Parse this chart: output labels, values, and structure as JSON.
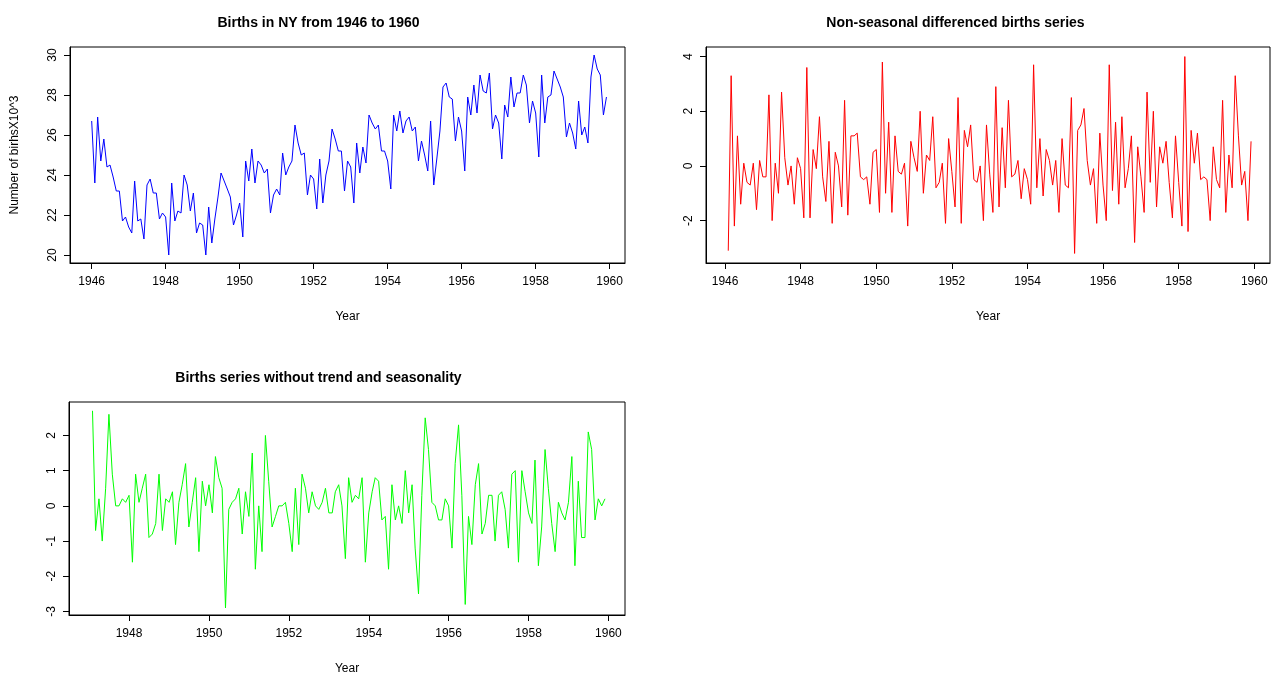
{
  "chart_data": [
    {
      "type": "line",
      "title": "Births in NY from 1946 to 1960",
      "xlabel": "Year",
      "ylabel": "Number of birhsX10^3",
      "color": "#0000ff",
      "marker": "none",
      "xlim": [
        "1945-06",
        "1960-06"
      ],
      "ylim": [
        19.6,
        30.4
      ],
      "xticks": [
        "1946",
        "1948",
        "1950",
        "1952",
        "1954",
        "1956",
        "1958",
        "1960"
      ],
      "yticks": [
        20,
        22,
        24,
        26,
        28,
        30
      ],
      "x": [
        "1946-01",
        "1946-02",
        "1946-03",
        "1946-04",
        "1946-05",
        "1946-06",
        "1946-07",
        "1946-08",
        "1946-09",
        "1946-10",
        "1946-11",
        "1946-12",
        "1947-01",
        "1947-02",
        "1947-03",
        "1947-04",
        "1947-05",
        "1947-06",
        "1947-07",
        "1947-08",
        "1947-09",
        "1947-10",
        "1947-11",
        "1947-12",
        "1948-01",
        "1948-02",
        "1948-03",
        "1948-04",
        "1948-05",
        "1948-06",
        "1948-07",
        "1948-08",
        "1948-09",
        "1948-10",
        "1948-11",
        "1948-12",
        "1949-01",
        "1949-02",
        "1949-03",
        "1949-04",
        "1949-05",
        "1949-06",
        "1949-07",
        "1949-08",
        "1949-09",
        "1949-10",
        "1949-11",
        "1949-12",
        "1950-01",
        "1950-02",
        "1950-03",
        "1950-04",
        "1950-05",
        "1950-06",
        "1950-07",
        "1950-08",
        "1950-09",
        "1950-10",
        "1950-11",
        "1950-12",
        "1951-01",
        "1951-02",
        "1951-03",
        "1951-04",
        "1951-05",
        "1951-06",
        "1951-07",
        "1951-08",
        "1951-09",
        "1951-10",
        "1951-11",
        "1951-12",
        "1952-01",
        "1952-02",
        "1952-03",
        "1952-04",
        "1952-05",
        "1952-06",
        "1952-07",
        "1952-08",
        "1952-09",
        "1952-10",
        "1952-11",
        "1952-12",
        "1953-01",
        "1953-02",
        "1953-03",
        "1953-04",
        "1953-05",
        "1953-06",
        "1953-07",
        "1953-08",
        "1953-09",
        "1953-10",
        "1953-11",
        "1953-12",
        "1954-01",
        "1954-02",
        "1954-03",
        "1954-04",
        "1954-05",
        "1954-06",
        "1954-07",
        "1954-08",
        "1954-09",
        "1954-10",
        "1954-11",
        "1954-12",
        "1955-01",
        "1955-02",
        "1955-03",
        "1955-04",
        "1955-05",
        "1955-06",
        "1955-07",
        "1955-08",
        "1955-09",
        "1955-10",
        "1955-11",
        "1955-12",
        "1956-01",
        "1956-02",
        "1956-03",
        "1956-04",
        "1956-05",
        "1956-06",
        "1956-07",
        "1956-08",
        "1956-09",
        "1956-10",
        "1956-11",
        "1956-12",
        "1957-01",
        "1957-02",
        "1957-03",
        "1957-04",
        "1957-05",
        "1957-06",
        "1957-07",
        "1957-08",
        "1957-09",
        "1957-10",
        "1957-11",
        "1957-12",
        "1958-01",
        "1958-02",
        "1958-03",
        "1958-04",
        "1958-05",
        "1958-06",
        "1958-07",
        "1958-08",
        "1958-09",
        "1958-10",
        "1958-11",
        "1958-12",
        "1959-01",
        "1959-02",
        "1959-03",
        "1959-04",
        "1959-05",
        "1959-06",
        "1959-07",
        "1959-08",
        "1959-09",
        "1959-10",
        "1959-11",
        "1959-12"
      ],
      "values": [
        26.7,
        23.6,
        26.9,
        24.7,
        25.8,
        24.4,
        24.5,
        23.9,
        23.2,
        23.2,
        21.7,
        21.9,
        21.4,
        21.1,
        23.7,
        21.7,
        21.8,
        20.8,
        23.5,
        23.8,
        23.1,
        23.1,
        21.8,
        22.1,
        21.9,
        20.0,
        23.6,
        21.7,
        22.2,
        22.1,
        24.0,
        23.5,
        22.2,
        23.1,
        21.1,
        21.6,
        21.5,
        20.0,
        22.4,
        20.6,
        21.8,
        22.9,
        24.1,
        23.7,
        23.3,
        22.9,
        21.5,
        22.0,
        22.6,
        20.9,
        24.7,
        23.7,
        25.3,
        23.6,
        24.7,
        24.5,
        24.1,
        24.3,
        22.1,
        23.0,
        23.3,
        23.0,
        25.1,
        24.0,
        24.4,
        24.7,
        26.5,
        25.6,
        25.0,
        25.1,
        23.0,
        24.0,
        23.8,
        22.3,
        24.8,
        22.6,
        24.0,
        24.7,
        26.3,
        25.8,
        25.2,
        25.2,
        23.2,
        24.7,
        24.4,
        22.6,
        25.6,
        24.1,
        25.4,
        24.6,
        27.0,
        26.6,
        26.3,
        26.5,
        25.2,
        25.2,
        24.7,
        23.3,
        27.0,
        26.2,
        27.2,
        26.1,
        26.7,
        26.9,
        26.2,
        26.4,
        24.7,
        25.7,
        25.0,
        24.2,
        26.7,
        23.5,
        24.8,
        26.2,
        28.4,
        28.6,
        27.9,
        27.8,
        25.7,
        26.9,
        26.2,
        24.2,
        27.9,
        27.0,
        28.5,
        27.1,
        29.0,
        28.2,
        28.1,
        29.1,
        26.3,
        27.0,
        26.6,
        24.8,
        27.5,
        26.9,
        28.9,
        27.4,
        28.1,
        28.1,
        29.0,
        28.5,
        26.6,
        27.7,
        27.1,
        24.9,
        29.0,
        26.6,
        27.9,
        28.0,
        29.2,
        28.8,
        28.4,
        27.9,
        25.9,
        26.6,
        26.1,
        25.3,
        27.7,
        26.0,
        26.4,
        25.6,
        28.9,
        30.0,
        29.3,
        29.0,
        27.0,
        27.9
      ]
    },
    {
      "type": "line",
      "title": "Non-seasonal differenced births series",
      "xlabel": "Year",
      "color": "#ff0000",
      "marker": "none",
      "xlim": [
        "1945-07",
        "1960-06"
      ],
      "ylim": [
        -3.55,
        4.35
      ],
      "xticks": [
        "1946",
        "1948",
        "1950",
        "1952",
        "1954",
        "1956",
        "1958",
        "1960"
      ],
      "yticks": [
        -2,
        0,
        2,
        4
      ],
      "x": [
        "1946-02",
        "1946-03",
        "1946-04",
        "1946-05",
        "1946-06",
        "1946-07",
        "1946-08",
        "1946-09",
        "1946-10",
        "1946-11",
        "1946-12",
        "1947-01",
        "1947-02",
        "1947-03",
        "1947-04",
        "1947-05",
        "1947-06",
        "1947-07",
        "1947-08",
        "1947-09",
        "1947-10",
        "1947-11",
        "1947-12",
        "1948-01",
        "1948-02",
        "1948-03",
        "1948-04",
        "1948-05",
        "1948-06",
        "1948-07",
        "1948-08",
        "1948-09",
        "1948-10",
        "1948-11",
        "1948-12",
        "1949-01",
        "1949-02",
        "1949-03",
        "1949-04",
        "1949-05",
        "1949-06",
        "1949-07",
        "1949-08",
        "1949-09",
        "1949-10",
        "1949-11",
        "1949-12",
        "1950-01",
        "1950-02",
        "1950-03",
        "1950-04",
        "1950-05",
        "1950-06",
        "1950-07",
        "1950-08",
        "1950-09",
        "1950-10",
        "1950-11",
        "1950-12",
        "1951-01",
        "1951-02",
        "1951-03",
        "1951-04",
        "1951-05",
        "1951-06",
        "1951-07",
        "1951-08",
        "1951-09",
        "1951-10",
        "1951-11",
        "1951-12",
        "1952-01",
        "1952-02",
        "1952-03",
        "1952-04",
        "1952-05",
        "1952-06",
        "1952-07",
        "1952-08",
        "1952-09",
        "1952-10",
        "1952-11",
        "1952-12",
        "1953-01",
        "1953-02",
        "1953-03",
        "1953-04",
        "1953-05",
        "1953-06",
        "1953-07",
        "1953-08",
        "1953-09",
        "1953-10",
        "1953-11",
        "1953-12",
        "1954-01",
        "1954-02",
        "1954-03",
        "1954-04",
        "1954-05",
        "1954-06",
        "1954-07",
        "1954-08",
        "1954-09",
        "1954-10",
        "1954-11",
        "1954-12",
        "1955-01",
        "1955-02",
        "1955-03",
        "1955-04",
        "1955-05",
        "1955-06",
        "1955-07",
        "1955-08",
        "1955-09",
        "1955-10",
        "1955-11",
        "1955-12",
        "1956-01",
        "1956-02",
        "1956-03",
        "1956-04",
        "1956-05",
        "1956-06",
        "1956-07",
        "1956-08",
        "1956-09",
        "1956-10",
        "1956-11",
        "1956-12",
        "1957-01",
        "1957-02",
        "1957-03",
        "1957-04",
        "1957-05",
        "1957-06",
        "1957-07",
        "1957-08",
        "1957-09",
        "1957-10",
        "1957-11",
        "1957-12",
        "1958-01",
        "1958-02",
        "1958-03",
        "1958-04",
        "1958-05",
        "1958-06",
        "1958-07",
        "1958-08",
        "1958-09",
        "1958-10",
        "1958-11",
        "1958-12",
        "1959-01",
        "1959-02",
        "1959-03",
        "1959-04",
        "1959-05",
        "1959-06",
        "1959-07",
        "1959-08",
        "1959-09",
        "1959-10",
        "1959-11",
        "1959-12"
      ],
      "values": [
        -3.1,
        3.3,
        -2.2,
        1.1,
        -1.4,
        0.1,
        -0.6,
        -0.7,
        0.1,
        -1.6,
        0.2,
        -0.4,
        -0.4,
        2.6,
        -2.0,
        0.1,
        -1.0,
        2.7,
        0.3,
        -0.7,
        0.0,
        -1.4,
        0.3,
        -0.1,
        -1.9,
        3.6,
        -1.9,
        0.6,
        -0.1,
        1.8,
        -0.4,
        -1.3,
        0.9,
        -2.1,
        0.5,
        0.0,
        -1.5,
        2.4,
        -1.8,
        1.1,
        1.1,
        1.2,
        -0.4,
        -0.5,
        -0.4,
        -1.4,
        0.5,
        0.6,
        -1.7,
        3.8,
        -1.0,
        1.6,
        -1.7,
        1.1,
        -0.2,
        -0.3,
        0.1,
        -2.2,
        0.9,
        0.3,
        -0.2,
        2.0,
        -1.0,
        0.4,
        0.2,
        1.8,
        -0.8,
        -0.6,
        0.1,
        -2.1,
        1.0,
        -0.2,
        -1.5,
        2.5,
        -2.1,
        1.3,
        0.7,
        1.5,
        -0.5,
        -0.6,
        0.0,
        -2.0,
        1.5,
        -0.3,
        -1.7,
        2.9,
        -1.5,
        1.4,
        -0.8,
        2.4,
        -0.4,
        -0.3,
        0.2,
        -1.2,
        -0.1,
        -0.5,
        -1.4,
        3.7,
        -0.8,
        1.0,
        -1.1,
        0.6,
        0.2,
        -0.7,
        0.2,
        -1.7,
        1.0,
        -0.7,
        -0.8,
        2.5,
        -3.2,
        1.3,
        1.5,
        2.1,
        0.2,
        -0.7,
        -0.1,
        -2.1,
        1.2,
        -0.7,
        -2.0,
        3.7,
        -0.9,
        1.6,
        -1.4,
        1.8,
        -0.8,
        -0.1,
        1.1,
        -2.8,
        0.7,
        -0.4,
        -1.7,
        2.7,
        -0.6,
        2.0,
        -1.5,
        0.7,
        0.1,
        0.9,
        -0.6,
        -1.9,
        1.1,
        -0.6,
        -2.2,
        4.0,
        -2.4,
        1.3,
        0.1,
        1.2,
        -0.5,
        -0.4,
        -0.5,
        -2.0,
        0.7,
        -0.5,
        -0.8,
        2.4,
        -1.7,
        0.4,
        -0.8,
        3.3,
        1.1,
        -0.7,
        -0.2,
        -2.0,
        0.9
      ]
    },
    {
      "type": "line",
      "title": "Births series without trend and seasonality",
      "xlabel": "Year",
      "color": "#00ff00",
      "marker": "none",
      "xlim": [
        "1946-07",
        "1960-06"
      ],
      "ylim": [
        -3.1,
        2.95
      ],
      "xticks": [
        "1948",
        "1950",
        "1952",
        "1954",
        "1956",
        "1958",
        "1960"
      ],
      "yticks": [
        -3,
        -2,
        -1,
        0,
        1,
        2
      ],
      "x": [
        "1947-02",
        "1947-03",
        "1947-04",
        "1947-05",
        "1947-06",
        "1947-07",
        "1947-08",
        "1947-09",
        "1947-10",
        "1947-11",
        "1947-12",
        "1948-01",
        "1948-02",
        "1948-03",
        "1948-04",
        "1948-05",
        "1948-06",
        "1948-07",
        "1948-08",
        "1948-09",
        "1948-10",
        "1948-11",
        "1948-12",
        "1949-01",
        "1949-02",
        "1949-03",
        "1949-04",
        "1949-05",
        "1949-06",
        "1949-07",
        "1949-08",
        "1949-09",
        "1949-10",
        "1949-11",
        "1949-12",
        "1950-01",
        "1950-02",
        "1950-03",
        "1950-04",
        "1950-05",
        "1950-06",
        "1950-07",
        "1950-08",
        "1950-09",
        "1950-10",
        "1950-11",
        "1950-12",
        "1951-01",
        "1951-02",
        "1951-03",
        "1951-04",
        "1951-05",
        "1951-06",
        "1951-07",
        "1951-08",
        "1951-09",
        "1951-10",
        "1951-11",
        "1951-12",
        "1952-01",
        "1952-02",
        "1952-03",
        "1952-04",
        "1952-05",
        "1952-06",
        "1952-07",
        "1952-08",
        "1952-09",
        "1952-10",
        "1952-11",
        "1952-12",
        "1953-01",
        "1953-02",
        "1953-03",
        "1953-04",
        "1953-05",
        "1953-06",
        "1953-07",
        "1953-08",
        "1953-09",
        "1953-10",
        "1953-11",
        "1953-12",
        "1954-01",
        "1954-02",
        "1954-03",
        "1954-04",
        "1954-05",
        "1954-06",
        "1954-07",
        "1954-08",
        "1954-09",
        "1954-10",
        "1954-11",
        "1954-12",
        "1955-01",
        "1955-02",
        "1955-03",
        "1955-04",
        "1955-05",
        "1955-06",
        "1955-07",
        "1955-08",
        "1955-09",
        "1955-10",
        "1955-11",
        "1955-12",
        "1956-01",
        "1956-02",
        "1956-03",
        "1956-04",
        "1956-05",
        "1956-06",
        "1956-07",
        "1956-08",
        "1956-09",
        "1956-10",
        "1956-11",
        "1956-12",
        "1957-01",
        "1957-02",
        "1957-03",
        "1957-04",
        "1957-05",
        "1957-06",
        "1957-07",
        "1957-08",
        "1957-09",
        "1957-10",
        "1957-11",
        "1957-12",
        "1958-01",
        "1958-02",
        "1958-03",
        "1958-04",
        "1958-05",
        "1958-06",
        "1958-07",
        "1958-08",
        "1958-09",
        "1958-10",
        "1958-11",
        "1958-12",
        "1959-01",
        "1959-02",
        "1959-03",
        "1959-04",
        "1959-05",
        "1959-06",
        "1959-07",
        "1959-08",
        "1959-09",
        "1959-10",
        "1959-11",
        "1959-12"
      ],
      "values": [
        2.7,
        -0.7,
        0.2,
        -1.0,
        0.5,
        2.6,
        0.9,
        0.0,
        0.0,
        0.2,
        0.1,
        0.3,
        -1.6,
        0.9,
        0.1,
        0.5,
        0.9,
        -0.9,
        -0.8,
        -0.5,
        0.9,
        -0.7,
        0.2,
        0.1,
        0.4,
        -1.1,
        0.1,
        0.6,
        1.2,
        -0.6,
        0.1,
        0.8,
        -1.3,
        0.7,
        0.0,
        0.6,
        -0.2,
        1.4,
        0.8,
        0.5,
        -2.9,
        -0.1,
        0.1,
        0.2,
        0.5,
        -0.8,
        0.4,
        -0.3,
        1.5,
        -1.8,
        0.0,
        -1.3,
        2.0,
        0.7,
        -0.6,
        -0.3,
        0.0,
        0.0,
        0.1,
        -0.5,
        -1.3,
        0.5,
        -1.1,
        0.9,
        0.5,
        -0.2,
        0.4,
        0.0,
        -0.1,
        0.1,
        0.5,
        -0.2,
        -0.2,
        0.4,
        0.6,
        0.0,
        -1.5,
        0.8,
        0.1,
        0.3,
        0.2,
        0.8,
        -1.6,
        -0.2,
        0.4,
        0.8,
        0.7,
        -0.4,
        -0.3,
        -1.8,
        0.6,
        -0.4,
        0.0,
        -0.5,
        1.0,
        -0.2,
        0.6,
        -1.2,
        -2.5,
        0.3,
        2.5,
        1.6,
        0.1,
        0.0,
        -0.4,
        -0.4,
        0.2,
        0.0,
        -1.2,
        1.2,
        2.3,
        0.3,
        -2.8,
        -0.3,
        -1.1,
        0.6,
        1.2,
        -0.8,
        -0.5,
        0.3,
        0.3,
        -1.0,
        0.3,
        0.4,
        -0.1,
        -1.2,
        0.9,
        1.0,
        -1.6,
        1.0,
        0.4,
        -0.2,
        -0.5,
        1.3,
        -1.7,
        -0.6,
        1.6,
        0.5,
        -0.5,
        -1.3,
        0.1,
        -0.2,
        -0.4,
        0.1,
        1.4,
        -1.7,
        0.7,
        -0.9,
        -0.9,
        2.1,
        1.6,
        -0.4,
        0.2,
        0.0,
        0.2
      ]
    }
  ]
}
